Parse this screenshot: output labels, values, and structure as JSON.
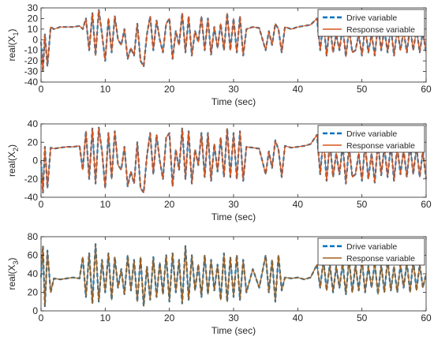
{
  "chart_data": [
    {
      "type": "line",
      "xlabel": "Time (sec)",
      "ylabel_main": "real(X",
      "ylabel_sub": "1",
      "ylabel_end": ")",
      "xlim": [
        0,
        60
      ],
      "ylim": [
        -40,
        30
      ],
      "xticks": [
        "0",
        "10",
        "20",
        "30",
        "40",
        "50",
        "60"
      ],
      "yticks": [
        "-40",
        "-30",
        "-20",
        "-10",
        "0",
        "10",
        "20",
        "30"
      ],
      "grid": false,
      "legend_position": "top-right",
      "series": [
        {
          "name": "Drive variable",
          "color": "#0072BD",
          "style": "dashed"
        },
        {
          "name": "Response variable",
          "color": "#D95319",
          "style": "solid"
        }
      ],
      "x": [
        0,
        0.3,
        0.6,
        1,
        1.5,
        2,
        3,
        4,
        5,
        6,
        6.5,
        7,
        7.5,
        8,
        8.5,
        9,
        9.5,
        10,
        10.5,
        11,
        11.5,
        12,
        12.5,
        13,
        13.5,
        14,
        14.5,
        15,
        15.5,
        16,
        16.5,
        17,
        17.5,
        18,
        18.5,
        19,
        19.5,
        20,
        20.5,
        21,
        21.5,
        22,
        22.5,
        23,
        23.5,
        24,
        24.5,
        25,
        25.5,
        26,
        26.5,
        27,
        27.5,
        28,
        28.5,
        29,
        29.5,
        30,
        30.5,
        31,
        31.5,
        32,
        33,
        34,
        35,
        35.5,
        36,
        36.5,
        37,
        37.5,
        38,
        39,
        40,
        41,
        42,
        43,
        43.5,
        44,
        44.5,
        45,
        45.5,
        46,
        46.5,
        47,
        47.5,
        48,
        48.5,
        49,
        49.5,
        50,
        50.5,
        51,
        51.5,
        52,
        52.5,
        53,
        53.5,
        54,
        54.5,
        55,
        55.5,
        56,
        56.5,
        57,
        57.5,
        58,
        58.5,
        59,
        59.5,
        60
      ],
      "values": [
        -2,
        -30,
        5,
        -25,
        12,
        10,
        12,
        12,
        12,
        13,
        10,
        20,
        -10,
        25,
        -15,
        28,
        5,
        -20,
        20,
        -12,
        22,
        0,
        -5,
        10,
        -18,
        -8,
        -15,
        15,
        -20,
        -25,
        5,
        22,
        -10,
        18,
        0,
        -12,
        15,
        20,
        -18,
        8,
        -5,
        25,
        -12,
        22,
        -15,
        8,
        -2,
        22,
        -10,
        20,
        -14,
        12,
        -8,
        15,
        -10,
        25,
        -10,
        20,
        -12,
        22,
        -15,
        10,
        12,
        11,
        -10,
        8,
        -5,
        15,
        10,
        -12,
        12,
        10,
        12,
        13,
        14,
        20,
        -10,
        18,
        -15,
        14,
        -12,
        5,
        -10,
        12,
        -16,
        10,
        -12,
        -10,
        5,
        -15,
        12,
        -12,
        5,
        -15,
        14,
        -10,
        10,
        -12,
        12,
        -15,
        10,
        -10,
        8,
        -12,
        12,
        -10,
        10,
        -12,
        8,
        -13
      ]
    },
    {
      "type": "line",
      "xlabel": "Time (sec)",
      "ylabel_main": "real(X",
      "ylabel_sub": "2",
      "ylabel_end": ")",
      "xlim": [
        0,
        60
      ],
      "ylim": [
        -40,
        40
      ],
      "xticks": [
        "0",
        "10",
        "20",
        "30",
        "40",
        "50",
        "60"
      ],
      "yticks": [
        "-40",
        "-20",
        "0",
        "20",
        "40"
      ],
      "grid": false,
      "legend_position": "top-right",
      "series": [
        {
          "name": "Drive variable",
          "color": "#0072BD",
          "style": "dashed"
        },
        {
          "name": "Response variable",
          "color": "#D95319",
          "style": "solid"
        }
      ],
      "x": [
        0,
        0.3,
        0.6,
        1,
        1.5,
        2,
        3,
        4,
        5,
        6,
        6.5,
        7,
        7.5,
        8,
        8.5,
        9,
        9.5,
        10,
        10.5,
        11,
        11.5,
        12,
        12.5,
        13,
        13.5,
        14,
        14.5,
        15,
        15.5,
        16,
        16.5,
        17,
        17.5,
        18,
        18.5,
        19,
        19.5,
        20,
        20.5,
        21,
        21.5,
        22,
        22.5,
        23,
        23.5,
        24,
        24.5,
        25,
        25.5,
        26,
        26.5,
        27,
        27.5,
        28,
        28.5,
        29,
        29.5,
        30,
        30.5,
        31,
        31.5,
        32,
        33,
        34,
        35,
        35.5,
        36,
        36.5,
        37,
        37.5,
        38,
        39,
        40,
        41,
        42,
        43,
        43.5,
        44,
        44.5,
        45,
        45.5,
        46,
        46.5,
        47,
        47.5,
        48,
        48.5,
        49,
        49.5,
        50,
        50.5,
        51,
        51.5,
        52,
        52.5,
        53,
        53.5,
        54,
        54.5,
        55,
        55.5,
        56,
        56.5,
        57,
        57.5,
        58,
        58.5,
        59,
        59.5,
        60
      ],
      "values": [
        0,
        -35,
        15,
        -30,
        14,
        13,
        14,
        15,
        15,
        16,
        -10,
        32,
        -20,
        35,
        -25,
        36,
        10,
        -30,
        30,
        -20,
        32,
        -5,
        -10,
        15,
        -28,
        -12,
        -25,
        20,
        -30,
        -35,
        5,
        30,
        -15,
        28,
        0,
        -20,
        25,
        30,
        -28,
        12,
        -10,
        35,
        -20,
        32,
        -25,
        12,
        -5,
        30,
        -18,
        30,
        -22,
        18,
        -12,
        25,
        -18,
        35,
        -18,
        30,
        -20,
        32,
        -22,
        15,
        14,
        13,
        -15,
        10,
        -8,
        22,
        12,
        -18,
        16,
        14,
        15,
        16,
        18,
        28,
        -15,
        25,
        -22,
        20,
        -18,
        8,
        -15,
        18,
        -25,
        15,
        -18,
        -15,
        8,
        -22,
        18,
        -20,
        8,
        -24,
        20,
        -16,
        15,
        -18,
        18,
        -22,
        15,
        -15,
        12,
        -18,
        18,
        -15,
        15,
        -18,
        10,
        -20
      ]
    },
    {
      "type": "line",
      "xlabel": "Time (sec)",
      "ylabel_main": "real(X",
      "ylabel_sub": "3",
      "ylabel_end": ")",
      "xlim": [
        0,
        60
      ],
      "ylim": [
        0,
        80
      ],
      "xticks": [
        "0",
        "10",
        "20",
        "30",
        "40",
        "50",
        "60"
      ],
      "yticks": [
        "0",
        "20",
        "40",
        "60",
        "80"
      ],
      "grid": false,
      "legend_position": "top-right",
      "series": [
        {
          "name": "Drive variable",
          "color": "#0072BD",
          "style": "dashed"
        },
        {
          "name": "Response variable",
          "color": "#A2601E",
          "style": "solid"
        }
      ],
      "x": [
        0,
        0.3,
        0.6,
        1,
        1.5,
        2,
        3,
        4,
        5,
        6,
        6.5,
        7,
        7.5,
        8,
        8.5,
        9,
        9.5,
        10,
        10.5,
        11,
        11.5,
        12,
        12.5,
        13,
        13.5,
        14,
        14.5,
        15,
        15.5,
        16,
        16.5,
        17,
        17.5,
        18,
        18.5,
        19,
        19.5,
        20,
        20.5,
        21,
        21.5,
        22,
        22.5,
        23,
        23.5,
        24,
        24.5,
        25,
        25.5,
        26,
        26.5,
        27,
        27.5,
        28,
        28.5,
        29,
        29.5,
        30,
        30.5,
        31,
        31.5,
        32,
        33,
        34,
        35,
        35.5,
        36,
        36.5,
        37,
        37.5,
        38,
        39,
        40,
        41,
        42,
        43,
        43.5,
        44,
        44.5,
        45,
        45.5,
        46,
        46.5,
        47,
        47.5,
        48,
        48.5,
        49,
        49.5,
        50,
        50.5,
        51,
        51.5,
        52,
        52.5,
        53,
        53.5,
        54,
        54.5,
        55,
        55.5,
        56,
        56.5,
        57,
        57.5,
        58,
        58.5,
        59,
        59.5,
        60
      ],
      "values": [
        36,
        70,
        5,
        65,
        20,
        35,
        34,
        35,
        36,
        35,
        58,
        15,
        62,
        8,
        72,
        10,
        55,
        20,
        62,
        12,
        58,
        25,
        45,
        18,
        60,
        22,
        55,
        10,
        58,
        5,
        48,
        12,
        58,
        15,
        52,
        18,
        60,
        10,
        62,
        20,
        55,
        8,
        70,
        12,
        60,
        22,
        50,
        15,
        60,
        18,
        55,
        22,
        50,
        12,
        62,
        10,
        58,
        15,
        60,
        12,
        55,
        20,
        45,
        25,
        60,
        20,
        55,
        10,
        60,
        22,
        36,
        35,
        36,
        34,
        36,
        50,
        25,
        55,
        22,
        50,
        20,
        48,
        25,
        52,
        18,
        55,
        20,
        50,
        22,
        55,
        20,
        48,
        25,
        52,
        18,
        50,
        20,
        55,
        22,
        48,
        20,
        50,
        25,
        52,
        20,
        55,
        22,
        50,
        25,
        40
      ]
    }
  ]
}
